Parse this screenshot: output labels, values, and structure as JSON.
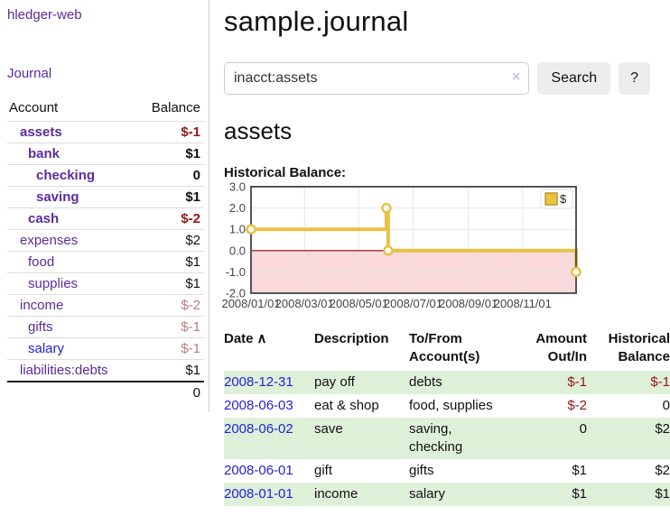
{
  "sidebar": {
    "app_title": "hledger-web",
    "nav": {
      "journal_label": "Journal"
    },
    "accounts_table": {
      "headers": {
        "account": "Account",
        "balance": "Balance"
      },
      "rows": [
        {
          "name": "assets",
          "balance": "$-1",
          "indent": 1,
          "bold": true,
          "balance_style": "neg-strong"
        },
        {
          "name": "bank",
          "balance": "$1",
          "indent": 2,
          "bold": true,
          "balance_style": "pos"
        },
        {
          "name": "checking",
          "balance": "0",
          "indent": 3,
          "bold": true,
          "balance_style": "pos"
        },
        {
          "name": "saving",
          "balance": "$1",
          "indent": 3,
          "bold": true,
          "balance_style": "pos"
        },
        {
          "name": "cash",
          "balance": "$-2",
          "indent": 2,
          "bold": true,
          "balance_style": "neg-strong"
        },
        {
          "name": "expenses",
          "balance": "$2",
          "indent": 1,
          "bold": false,
          "balance_style": "pos"
        },
        {
          "name": "food",
          "balance": "$1",
          "indent": 2,
          "bold": false,
          "balance_style": "pos"
        },
        {
          "name": "supplies",
          "balance": "$1",
          "indent": 2,
          "bold": false,
          "balance_style": "pos"
        },
        {
          "name": "income",
          "balance": "$-2",
          "indent": 1,
          "bold": false,
          "balance_style": "neg-muted"
        },
        {
          "name": "gifts",
          "balance": "$-1",
          "indent": 2,
          "bold": false,
          "balance_style": "neg-muted"
        },
        {
          "name": "salary",
          "balance": "$-1",
          "indent": 2,
          "bold": false,
          "balance_style": "neg-muted",
          "link_color": "blue"
        },
        {
          "name": "liabilities:debts",
          "balance": "$1",
          "indent": 1,
          "bold": false,
          "balance_style": "pos"
        }
      ],
      "total": "0"
    }
  },
  "main": {
    "title": "sample.journal",
    "search": {
      "value": "inacct:assets",
      "clear_icon": "×",
      "button_label": "Search",
      "help_label": "?"
    },
    "section_heading": "assets",
    "chart_label": "Historical Balance:"
  },
  "chart_data": {
    "type": "line",
    "step": true,
    "title": "Historical Balance",
    "series": [
      {
        "name": "$",
        "color": "#e8c245",
        "points": [
          [
            "2008-01-01",
            1
          ],
          [
            "2008-06-01",
            2
          ],
          [
            "2008-06-03",
            0
          ],
          [
            "2008-12-31",
            -1
          ]
        ]
      }
    ],
    "x_range": [
      "2008-01-01",
      "2008-12-31"
    ],
    "x_ticks": [
      "2008/01/01",
      "2008/03/01",
      "2008/05/01",
      "2008/07/01",
      "2008/09/01",
      "2008/11/01"
    ],
    "y_ticks": [
      3.0,
      2.0,
      1.0,
      0.0,
      -1.0,
      -2.0
    ],
    "ylim": [
      -2,
      3
    ],
    "grid": true,
    "legend_position": "top-right",
    "legend_label": "$",
    "colors": {
      "negative_fill": "#f9d9db",
      "zero_line": "#8b0000",
      "plot_border": "#545454",
      "gridline": "#e6e6e6",
      "tick_text": "#444444",
      "legend_swatch": "#edc240",
      "legend_swatch_border": "#b99a30"
    }
  },
  "register_table": {
    "headers": {
      "date": "Date",
      "sort_icon": "∧",
      "description": "Description",
      "tofrom": "To/From Account(s)",
      "amount": "Amount Out/In",
      "balance": "Historical Balance"
    },
    "rows": [
      {
        "date": "2008-12-31",
        "description": "pay off",
        "accounts": "debts",
        "amount": "$-1",
        "amount_neg": true,
        "balance": "$-1",
        "balance_neg": true
      },
      {
        "date": "2008-06-03",
        "description": "eat & shop",
        "accounts": "food, supplies",
        "amount": "$-2",
        "amount_neg": true,
        "balance": "0",
        "balance_neg": false
      },
      {
        "date": "2008-06-02",
        "description": "save",
        "accounts": "saving, checking",
        "amount": "0",
        "amount_neg": false,
        "balance": "$2",
        "balance_neg": false
      },
      {
        "date": "2008-06-01",
        "description": "gift",
        "accounts": "gifts",
        "amount": "$1",
        "amount_neg": false,
        "balance": "$2",
        "balance_neg": false
      },
      {
        "date": "2008-01-01",
        "description": "income",
        "accounts": "salary",
        "amount": "$1",
        "amount_neg": false,
        "balance": "$1",
        "balance_neg": false
      }
    ]
  },
  "colors": {
    "link_purple": "#5a2c9e",
    "link_blue": "#2222dd",
    "negative_strong": "#941616",
    "negative_muted": "#b87c7c",
    "row_stripe_green": "#dff0d8",
    "button_bg": "#ededed"
  }
}
